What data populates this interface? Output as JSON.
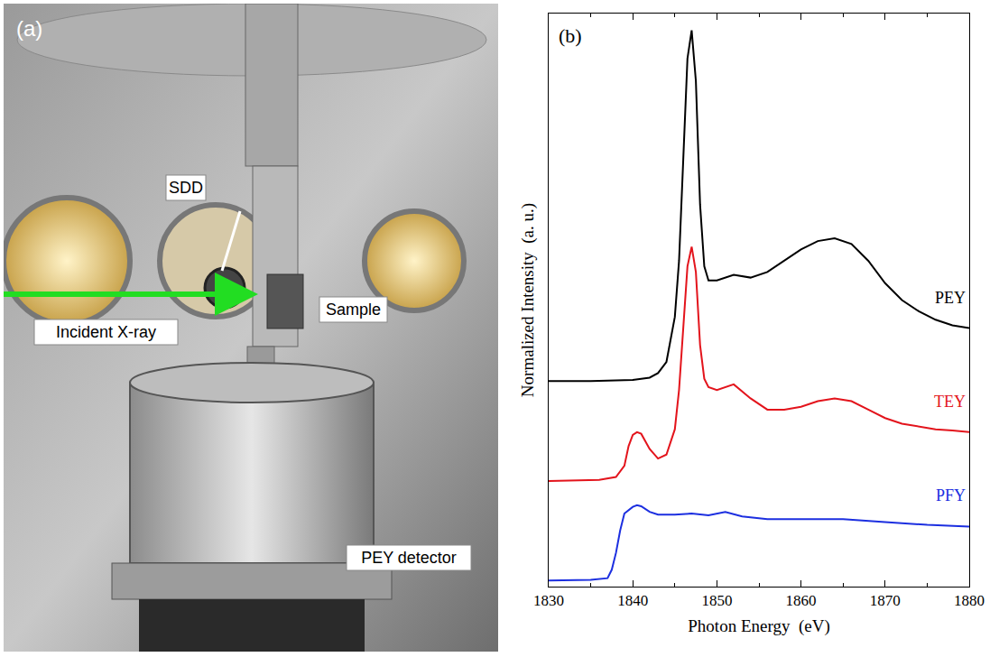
{
  "panel_a": {
    "panel_label": "(a)",
    "labels": {
      "sdd": "SDD",
      "beam": "Incident X-ray",
      "sample": "Sample",
      "detector": "PEY detector"
    }
  },
  "chart_data": {
    "type": "line",
    "panel_label": "(b)",
    "x_label": "Photon Energy  (eV)",
    "y_label": "Normalized Intensity  (a. u.)",
    "xlim": [
      1830,
      1880
    ],
    "xticks": [
      1830,
      1840,
      1850,
      1860,
      1870,
      1880
    ],
    "ylim": [
      0,
      10.2
    ],
    "tick_labels": "x",
    "grid": false,
    "series": [
      {
        "name": "PEY",
        "color": "#000000",
        "x": [
          1830,
          1835,
          1840,
          1842,
          1843,
          1844,
          1845,
          1845.5,
          1846,
          1846.5,
          1847,
          1847.5,
          1848,
          1848.5,
          1849,
          1850,
          1852,
          1854,
          1856,
          1858,
          1860,
          1862,
          1864,
          1866,
          1868,
          1870,
          1872,
          1874,
          1876,
          1878,
          1880
        ],
        "values": [
          3.66,
          3.66,
          3.68,
          3.72,
          3.8,
          4.0,
          4.8,
          5.8,
          7.6,
          9.4,
          9.9,
          9.0,
          6.8,
          5.7,
          5.45,
          5.45,
          5.55,
          5.5,
          5.6,
          5.8,
          6.0,
          6.15,
          6.2,
          6.1,
          5.8,
          5.4,
          5.1,
          4.9,
          4.75,
          4.65,
          4.6
        ]
      },
      {
        "name": "TEY",
        "color": "#e3141c",
        "x": [
          1830,
          1836,
          1838,
          1839,
          1839.5,
          1840,
          1840.5,
          1841,
          1842,
          1843,
          1844,
          1845,
          1845.5,
          1846,
          1846.5,
          1847,
          1847.5,
          1848,
          1848.5,
          1849,
          1850,
          1852,
          1854,
          1856,
          1858,
          1860,
          1862,
          1864,
          1866,
          1868,
          1870,
          1872,
          1874,
          1876,
          1878,
          1880
        ],
        "values": [
          1.88,
          1.9,
          1.95,
          2.15,
          2.5,
          2.7,
          2.75,
          2.72,
          2.45,
          2.28,
          2.35,
          2.8,
          3.5,
          4.6,
          5.7,
          6.05,
          5.6,
          4.3,
          3.7,
          3.55,
          3.5,
          3.6,
          3.35,
          3.15,
          3.15,
          3.2,
          3.3,
          3.35,
          3.3,
          3.15,
          3.0,
          2.9,
          2.85,
          2.8,
          2.78,
          2.75
        ]
      },
      {
        "name": "PFY",
        "color": "#1c2fe0",
        "x": [
          1830,
          1835,
          1837,
          1837.5,
          1838,
          1838.5,
          1839,
          1840,
          1840.5,
          1841,
          1842,
          1843,
          1845,
          1847,
          1849,
          1851,
          1853,
          1856,
          1860,
          1865,
          1870,
          1875,
          1880
        ],
        "values": [
          0.11,
          0.12,
          0.15,
          0.3,
          0.6,
          1.0,
          1.3,
          1.42,
          1.45,
          1.43,
          1.33,
          1.28,
          1.28,
          1.3,
          1.27,
          1.33,
          1.25,
          1.2,
          1.2,
          1.2,
          1.15,
          1.1,
          1.07
        ]
      }
    ]
  }
}
